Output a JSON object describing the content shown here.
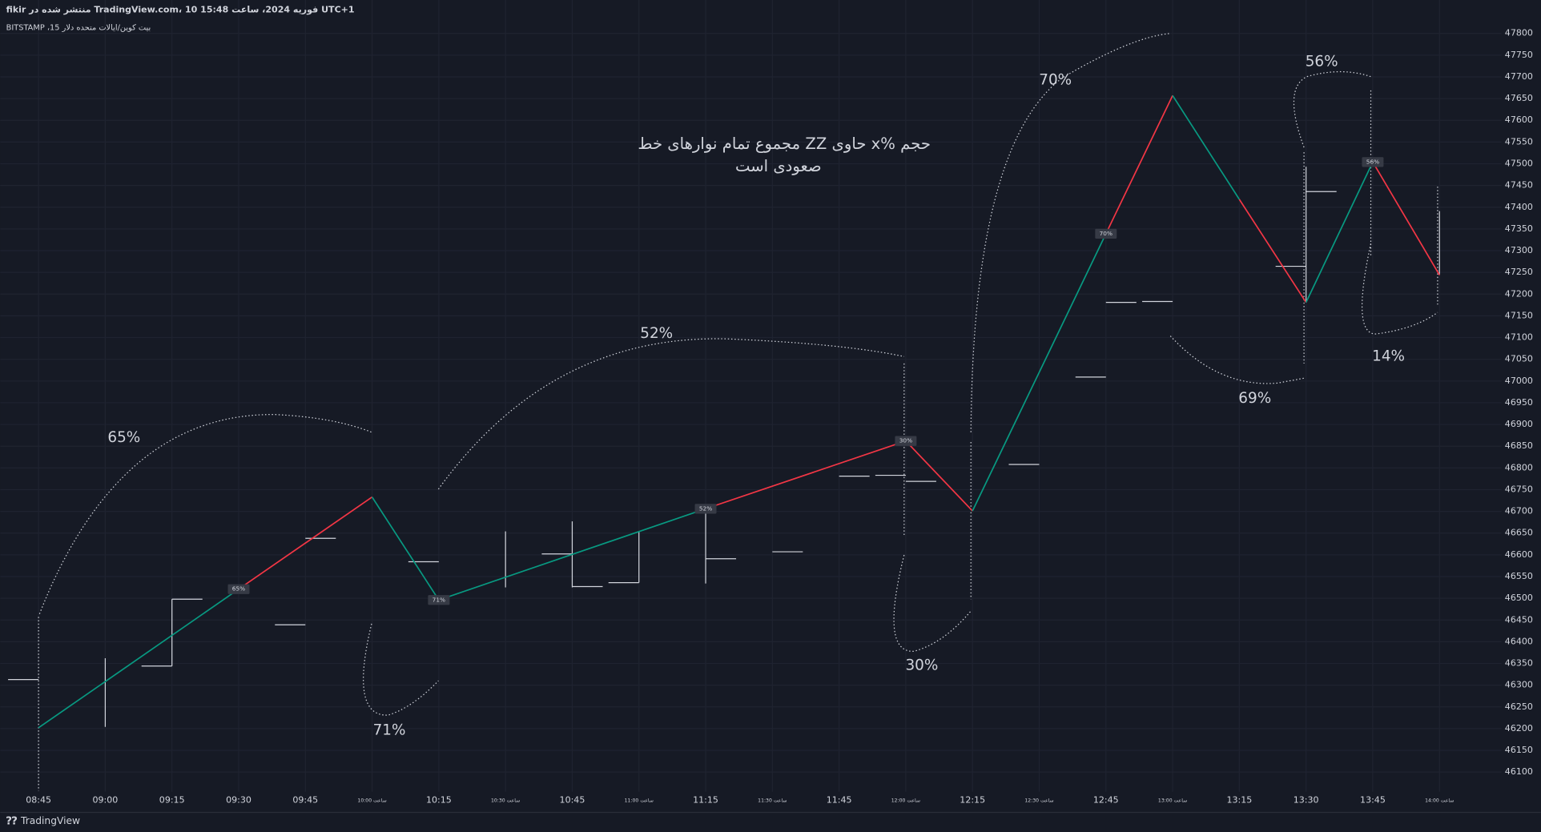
{
  "header": {
    "publisher": "fikir منتشر شده در TradingView.com، 10 فوریه 2024، ساعت 15:48 UTC+1",
    "symbol": "BITSTAMP ،15 بیت کوین/ایالات متحده دلار"
  },
  "footer": {
    "brand": "TradingView"
  },
  "chart_data": {
    "type": "line",
    "annotation_lines": [
      "مجموع تمام نوارهای خط ZZ حاوی x% حجم",
      "صعودی است"
    ],
    "percent_annotations": [
      "65%",
      "71%",
      "52%",
      "30%",
      "70%",
      "69%",
      "56%",
      "14%"
    ],
    "ylim": [
      46100,
      47800
    ],
    "yticks": [
      46100,
      46150,
      46200,
      46250,
      46300,
      46350,
      46400,
      46450,
      46500,
      46550,
      46600,
      46650,
      46700,
      46750,
      46800,
      46850,
      46900,
      46950,
      47000,
      47050,
      47100,
      47150,
      47200,
      47250,
      47300,
      47350,
      47400,
      47450,
      47500,
      47550,
      47600,
      47650,
      47700,
      47750,
      47800
    ],
    "xticks": [
      "08:45",
      "09:00",
      "09:15",
      "09:30",
      "09:45",
      {
        "value": "10:00",
        "label": "ساعت 10:00"
      },
      "10:15",
      {
        "value": "10:30",
        "label": "ساعت 10:30"
      },
      "10:45",
      {
        "value": "11:00",
        "label": "ساعت 11:00"
      },
      "11:15",
      {
        "value": "11:30",
        "label": "ساعت 11:30"
      },
      "11:45",
      {
        "value": "12:00",
        "label": "ساعت 12:00"
      },
      "12:15",
      {
        "value": "12:30",
        "label": "ساعت 12:30"
      },
      "12:45",
      {
        "value": "13:00",
        "label": "ساعت 13:00"
      },
      "13:15",
      "13:30",
      "13:45",
      {
        "value": "14:00",
        "label": "ساعت 14:00"
      }
    ],
    "grid": true,
    "zigzag": {
      "x": [
        "08:45",
        "09:30",
        "10:00",
        "10:15",
        "11:15",
        "12:00",
        "12:15",
        "12:45",
        "13:00",
        "13:15",
        "13:30",
        "13:45",
        "14:00"
      ],
      "values": [
        46202,
        46521,
        46733,
        46496,
        46706,
        46862,
        46701,
        47339,
        47657,
        47418,
        47181,
        47504,
        47244
      ],
      "segment_colors": [
        "#089981",
        "#f23645",
        "#089981",
        "#089981",
        "#f23645",
        "#f23645",
        "#089981",
        "#f23645",
        "#089981",
        "#f23645",
        "#089981",
        "#f23645"
      ],
      "point_labels": [
        null,
        "65%",
        null,
        "71%",
        "52%",
        "30%",
        null,
        "70%",
        null,
        null,
        null,
        "56%",
        null
      ]
    },
    "ohlc": {
      "color": "#d1d4dc",
      "x": [
        "08:45",
        "09:00",
        "09:15",
        "09:45",
        "10:15",
        "10:30",
        "10:45",
        "11:00",
        "11:15",
        "11:30",
        "11:45",
        "12:00",
        "12:30",
        "12:45",
        "13:00",
        "13:30",
        "14:00"
      ],
      "open": [
        46313,
        null,
        46344,
        46439,
        46584,
        null,
        46602,
        46536,
        null,
        null,
        null,
        46783,
        46808,
        47009,
        47183,
        47264,
        null
      ],
      "high": [
        null,
        46362,
        46498,
        null,
        null,
        46654,
        46677,
        46654,
        46713,
        null,
        null,
        null,
        null,
        null,
        null,
        47493,
        47391
      ],
      "low": [
        null,
        46204,
        46344,
        null,
        null,
        46525,
        46525,
        46536,
        46534,
        null,
        null,
        null,
        null,
        null,
        null,
        47181,
        47244
      ],
      "close": [
        null,
        null,
        46498,
        46638,
        null,
        null,
        46527,
        null,
        46591,
        46607,
        46781,
        46769,
        null,
        47181,
        null,
        47436,
        null
      ]
    }
  }
}
